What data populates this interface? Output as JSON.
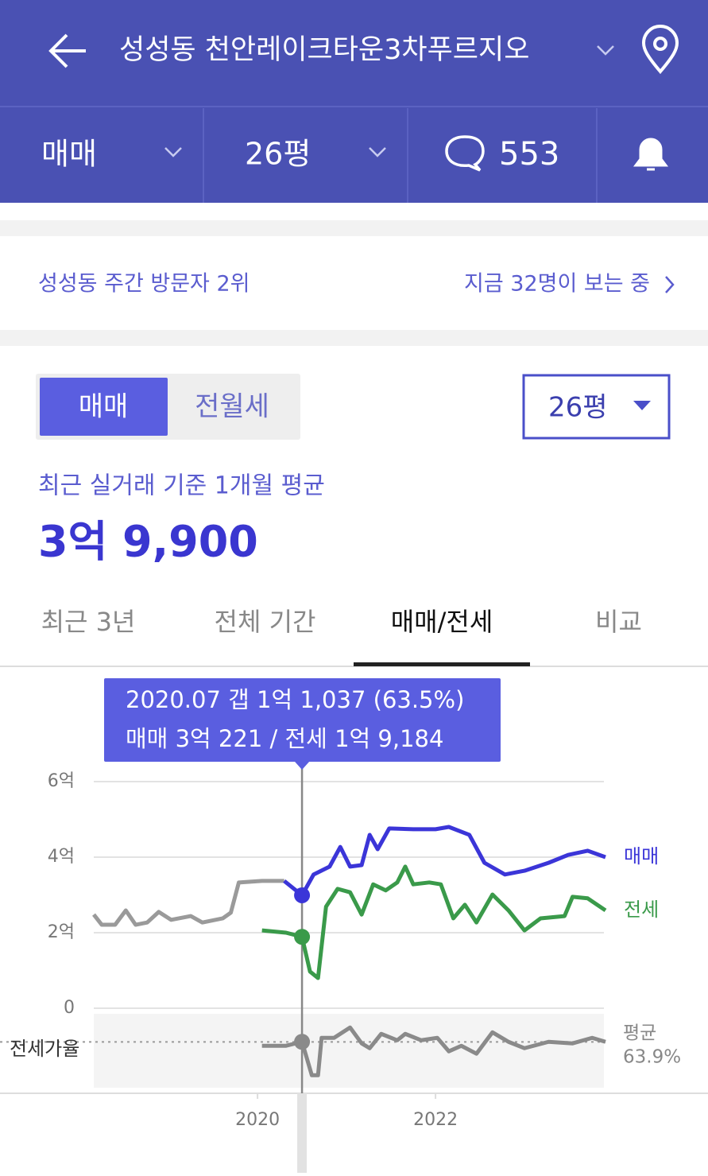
{
  "header": {
    "title": "성성동 천안레이크타운3차푸르지오"
  },
  "bar": {
    "deal": "매매",
    "size": "26평",
    "comments": 553
  },
  "info": {
    "rank": "성성동 주간 방문자 2위",
    "viewers": "지금 32명이 보는 중"
  },
  "toggle": {
    "options": [
      "매매",
      "전월세"
    ],
    "active": 0,
    "size": "26평"
  },
  "summary": {
    "caption": "최근 실거래 기준 1개월 평균",
    "price": "3억 9,900"
  },
  "tabs": {
    "items": [
      "최근 3년",
      "전체 기간",
      "매매/전세",
      "비교"
    ],
    "active": 2
  },
  "chart_data": {
    "type": "line",
    "tooltip": [
      "2020.07  갭 1억 1,037 (63.5%)",
      "매매 3억 221 / 전세 1억 9,184"
    ],
    "cursor": 2020.5,
    "xlim": [
      2018.16,
      2023.91
    ],
    "xticks": [
      2020,
      2022
    ],
    "ylim": [
      0,
      6
    ],
    "yticks": [
      {
        "value": 6,
        "label": "6억"
      },
      {
        "value": 4,
        "label": "4억"
      },
      {
        "value": 2,
        "label": "2억"
      },
      {
        "value": 0,
        "label": "0"
      }
    ],
    "grid": true,
    "series": [
      {
        "name": "매매",
        "color": "#3b35d8",
        "history_color": "#9a9a9a",
        "active_from": 2020.3,
        "x": [
          2018.16,
          2018.25,
          2018.4,
          2018.52,
          2018.63,
          2018.76,
          2018.89,
          2019.03,
          2019.25,
          2019.38,
          2019.61,
          2019.7,
          2019.79,
          2020.05,
          2020.3,
          2020.5,
          2020.63,
          2020.81,
          2020.93,
          2021.04,
          2021.17,
          2021.26,
          2021.35,
          2021.48,
          2021.75,
          2022.0,
          2022.15,
          2022.38,
          2022.55,
          2022.78,
          2023.0,
          2023.27,
          2023.49,
          2023.71,
          2023.91
        ],
        "values": [
          2.48,
          2.21,
          2.21,
          2.59,
          2.21,
          2.27,
          2.55,
          2.34,
          2.44,
          2.27,
          2.38,
          2.53,
          3.33,
          3.37,
          3.37,
          2.99,
          3.54,
          3.75,
          4.27,
          3.75,
          3.79,
          4.59,
          4.21,
          4.76,
          4.74,
          4.74,
          4.8,
          4.59,
          3.85,
          3.54,
          3.64,
          3.85,
          4.06,
          4.17,
          4.0
        ]
      },
      {
        "name": "전세",
        "color": "#3a9a4a",
        "x": [
          2020.05,
          2020.32,
          2020.5,
          2020.59,
          2020.68,
          2020.77,
          2020.9,
          2021.04,
          2021.17,
          2021.3,
          2021.44,
          2021.57,
          2021.66,
          2021.75,
          2021.93,
          2022.06,
          2022.2,
          2022.33,
          2022.46,
          2022.64,
          2022.82,
          2023.0,
          2023.18,
          2023.45,
          2023.54,
          2023.71,
          2023.91
        ],
        "values": [
          2.06,
          2.0,
          1.89,
          0.97,
          0.8,
          2.69,
          3.16,
          3.07,
          2.48,
          3.28,
          3.12,
          3.33,
          3.75,
          3.28,
          3.33,
          3.28,
          2.38,
          2.74,
          2.27,
          3.01,
          2.59,
          2.06,
          2.38,
          2.44,
          2.95,
          2.91,
          2.59
        ]
      }
    ],
    "ratio": {
      "label": "전세가율",
      "ylim": [
        5,
        100
      ],
      "color": "#8a8a8a",
      "x": [
        2020.05,
        2020.32,
        2020.5,
        2020.61,
        2020.68,
        2020.72,
        2020.86,
        2021.04,
        2021.17,
        2021.26,
        2021.39,
        2021.57,
        2021.66,
        2021.84,
        2022.02,
        2022.15,
        2022.29,
        2022.46,
        2022.64,
        2022.82,
        2023.0,
        2023.27,
        2023.54,
        2023.76,
        2023.91
      ],
      "values": [
        58.9,
        58.9,
        64,
        21.1,
        21.1,
        69.1,
        69.1,
        82.4,
        62,
        55.8,
        74.2,
        66,
        74.2,
        66,
        69.1,
        51.8,
        58.9,
        48.7,
        76.2,
        64,
        55.8,
        64,
        62,
        69.1,
        64
      ],
      "average_label": "평균",
      "average": 63.9,
      "average_value_label": "63.9%"
    }
  }
}
